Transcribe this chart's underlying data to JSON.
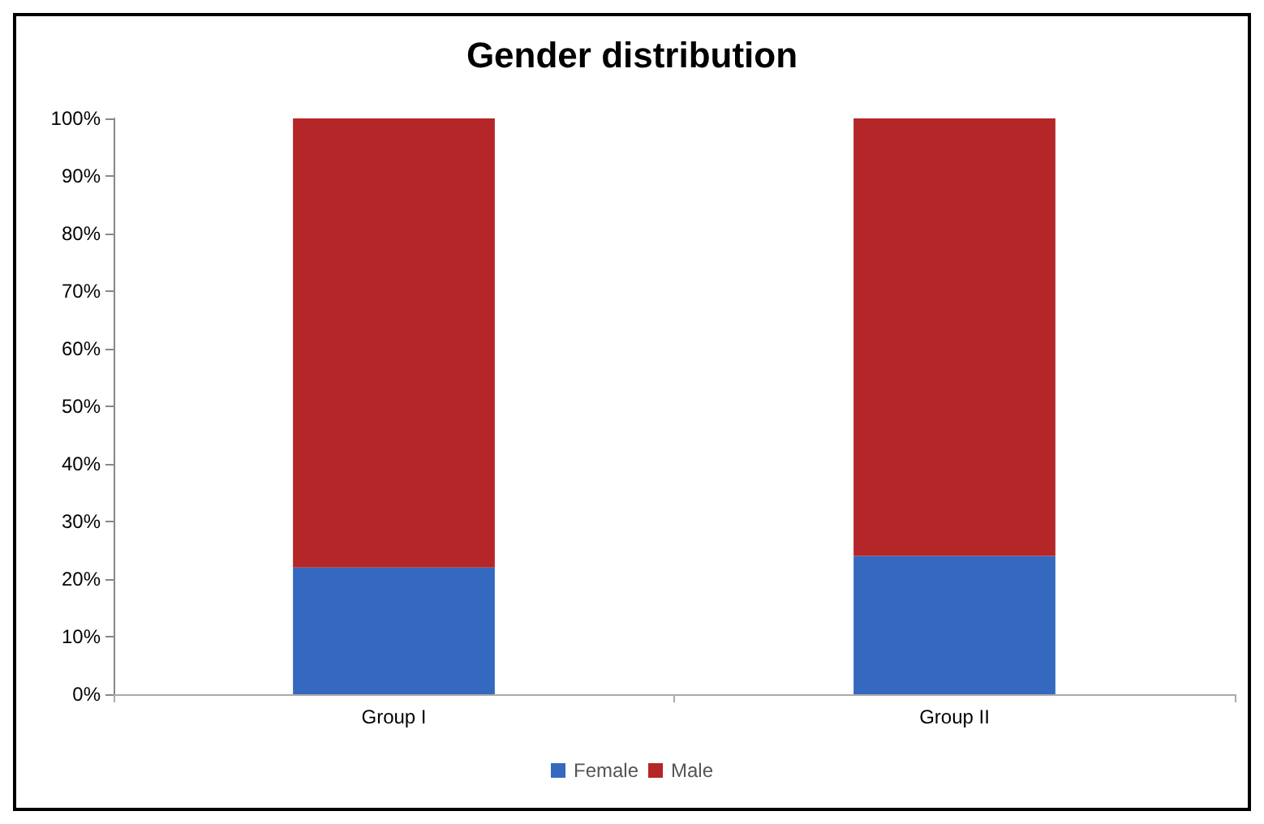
{
  "chart_data": {
    "type": "bar",
    "title": "Gender distribution",
    "categories": [
      "Group I",
      "Group II"
    ],
    "stacked": true,
    "series": [
      {
        "name": "Female",
        "color": "#3569c0",
        "values": [
          22,
          24
        ]
      },
      {
        "name": "Male",
        "color": "#b52628",
        "values": [
          78,
          76
        ]
      }
    ],
    "ylim": [
      0,
      100
    ],
    "yticks": [
      {
        "value": 0,
        "label": "0%"
      },
      {
        "value": 10,
        "label": "10%"
      },
      {
        "value": 20,
        "label": "20%"
      },
      {
        "value": 30,
        "label": "30%"
      },
      {
        "value": 40,
        "label": "40%"
      },
      {
        "value": 50,
        "label": "50%"
      },
      {
        "value": 60,
        "label": "60%"
      },
      {
        "value": 70,
        "label": "70%"
      },
      {
        "value": 80,
        "label": "80%"
      },
      {
        "value": 90,
        "label": "90%"
      },
      {
        "value": 100,
        "label": "100%"
      }
    ],
    "grid": false,
    "legend": "bottom"
  }
}
